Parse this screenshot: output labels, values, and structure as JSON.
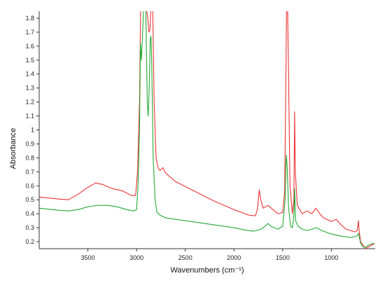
{
  "chart_data": {
    "type": "line",
    "xlabel": "Wavenumbers (cm⁻¹)",
    "ylabel": "Absorbance",
    "xlim": [
      4000,
      550
    ],
    "ylim": [
      0.15,
      1.85
    ],
    "x_reversed": true,
    "grid": false,
    "x_ticks": [
      3500,
      3000,
      2500,
      2000,
      1500,
      1000
    ],
    "y_ticks": [
      0.2,
      0.3,
      0.4,
      0.5,
      0.6,
      0.7,
      0.8,
      0.9,
      1.0,
      1.1,
      1.2,
      1.3,
      1.4,
      1.5,
      1.6,
      1.7,
      1.8
    ],
    "x_tick_labels": [
      "3500",
      "3000",
      "2500",
      "2000",
      "1500",
      "1000"
    ],
    "y_tick_labels": [
      "0.2",
      "0.3",
      "0.4",
      "0.5",
      "0.6",
      "0.7",
      "0.8",
      "0.9",
      "1",
      "1.1",
      "1.2",
      "1.3",
      "1.4",
      "1.5",
      "1.6",
      "1.7",
      "1.8"
    ],
    "series": [
      {
        "color": "#ee3333",
        "points": [
          [
            4000,
            0.52
          ],
          [
            3800,
            0.505
          ],
          [
            3700,
            0.5
          ],
          [
            3600,
            0.54
          ],
          [
            3500,
            0.59
          ],
          [
            3420,
            0.62
          ],
          [
            3350,
            0.61
          ],
          [
            3250,
            0.58
          ],
          [
            3150,
            0.565
          ],
          [
            3050,
            0.53
          ],
          [
            3010,
            0.53
          ],
          [
            2990,
            0.7
          ],
          [
            2970,
            1.2
          ],
          [
            2958,
            1.9
          ],
          [
            2945,
            1.9
          ],
          [
            2935,
            1.9
          ],
          [
            2925,
            1.9
          ],
          [
            2905,
            1.9
          ],
          [
            2885,
            1.8
          ],
          [
            2873,
            1.7
          ],
          [
            2862,
            1.72
          ],
          [
            2852,
            1.9
          ],
          [
            2835,
            1.9
          ],
          [
            2820,
            1.2
          ],
          [
            2800,
            0.8
          ],
          [
            2780,
            0.73
          ],
          [
            2760,
            0.71
          ],
          [
            2730,
            0.73
          ],
          [
            2700,
            0.69
          ],
          [
            2600,
            0.63
          ],
          [
            2400,
            0.56
          ],
          [
            2200,
            0.49
          ],
          [
            2000,
            0.43
          ],
          [
            1850,
            0.39
          ],
          [
            1780,
            0.385
          ],
          [
            1760,
            0.43
          ],
          [
            1740,
            0.57
          ],
          [
            1725,
            0.5
          ],
          [
            1700,
            0.44
          ],
          [
            1650,
            0.46
          ],
          [
            1600,
            0.43
          ],
          [
            1550,
            0.4
          ],
          [
            1500,
            0.41
          ],
          [
            1480,
            0.55
          ],
          [
            1468,
            1.3
          ],
          [
            1460,
            1.9
          ],
          [
            1450,
            1.9
          ],
          [
            1440,
            1.4
          ],
          [
            1425,
            0.6
          ],
          [
            1400,
            0.4
          ],
          [
            1385,
            0.5
          ],
          [
            1377,
            1.13
          ],
          [
            1370,
            0.7
          ],
          [
            1350,
            0.46
          ],
          [
            1300,
            0.4
          ],
          [
            1250,
            0.42
          ],
          [
            1200,
            0.4
          ],
          [
            1160,
            0.44
          ],
          [
            1120,
            0.4
          ],
          [
            1080,
            0.37
          ],
          [
            1000,
            0.345
          ],
          [
            950,
            0.36
          ],
          [
            900,
            0.32
          ],
          [
            850,
            0.29
          ],
          [
            800,
            0.28
          ],
          [
            760,
            0.27
          ],
          [
            735,
            0.28
          ],
          [
            722,
            0.35
          ],
          [
            715,
            0.28
          ],
          [
            700,
            0.2
          ],
          [
            650,
            0.15
          ],
          [
            600,
            0.17
          ],
          [
            560,
            0.185
          ]
        ]
      },
      {
        "color": "#22aa33",
        "points": [
          [
            4000,
            0.44
          ],
          [
            3800,
            0.425
          ],
          [
            3700,
            0.42
          ],
          [
            3600,
            0.43
          ],
          [
            3500,
            0.45
          ],
          [
            3400,
            0.46
          ],
          [
            3300,
            0.46
          ],
          [
            3200,
            0.45
          ],
          [
            3100,
            0.43
          ],
          [
            3030,
            0.42
          ],
          [
            3000,
            0.43
          ],
          [
            2985,
            0.6
          ],
          [
            2970,
            1.0
          ],
          [
            2960,
            1.62
          ],
          [
            2950,
            1.5
          ],
          [
            2940,
            1.66
          ],
          [
            2930,
            1.85
          ],
          [
            2920,
            1.9
          ],
          [
            2905,
            1.85
          ],
          [
            2890,
            1.2
          ],
          [
            2880,
            1.1
          ],
          [
            2870,
            1.3
          ],
          [
            2860,
            1.65
          ],
          [
            2852,
            1.67
          ],
          [
            2845,
            1.5
          ],
          [
            2830,
            0.8
          ],
          [
            2810,
            0.5
          ],
          [
            2790,
            0.41
          ],
          [
            2760,
            0.39
          ],
          [
            2700,
            0.37
          ],
          [
            2500,
            0.35
          ],
          [
            2200,
            0.32
          ],
          [
            2000,
            0.3
          ],
          [
            1900,
            0.285
          ],
          [
            1800,
            0.275
          ],
          [
            1720,
            0.29
          ],
          [
            1650,
            0.33
          ],
          [
            1620,
            0.31
          ],
          [
            1550,
            0.29
          ],
          [
            1500,
            0.31
          ],
          [
            1475,
            0.5
          ],
          [
            1467,
            0.75
          ],
          [
            1462,
            0.82
          ],
          [
            1455,
            0.75
          ],
          [
            1440,
            0.45
          ],
          [
            1420,
            0.31
          ],
          [
            1400,
            0.3
          ],
          [
            1385,
            0.38
          ],
          [
            1377,
            0.58
          ],
          [
            1368,
            0.35
          ],
          [
            1340,
            0.31
          ],
          [
            1300,
            0.29
          ],
          [
            1250,
            0.28
          ],
          [
            1200,
            0.29
          ],
          [
            1150,
            0.3
          ],
          [
            1100,
            0.28
          ],
          [
            1000,
            0.255
          ],
          [
            900,
            0.24
          ],
          [
            800,
            0.23
          ],
          [
            740,
            0.24
          ],
          [
            722,
            0.26
          ],
          [
            715,
            0.24
          ],
          [
            700,
            0.19
          ],
          [
            680,
            0.165
          ],
          [
            650,
            0.16
          ],
          [
            620,
            0.175
          ],
          [
            560,
            0.19
          ]
        ]
      }
    ]
  }
}
